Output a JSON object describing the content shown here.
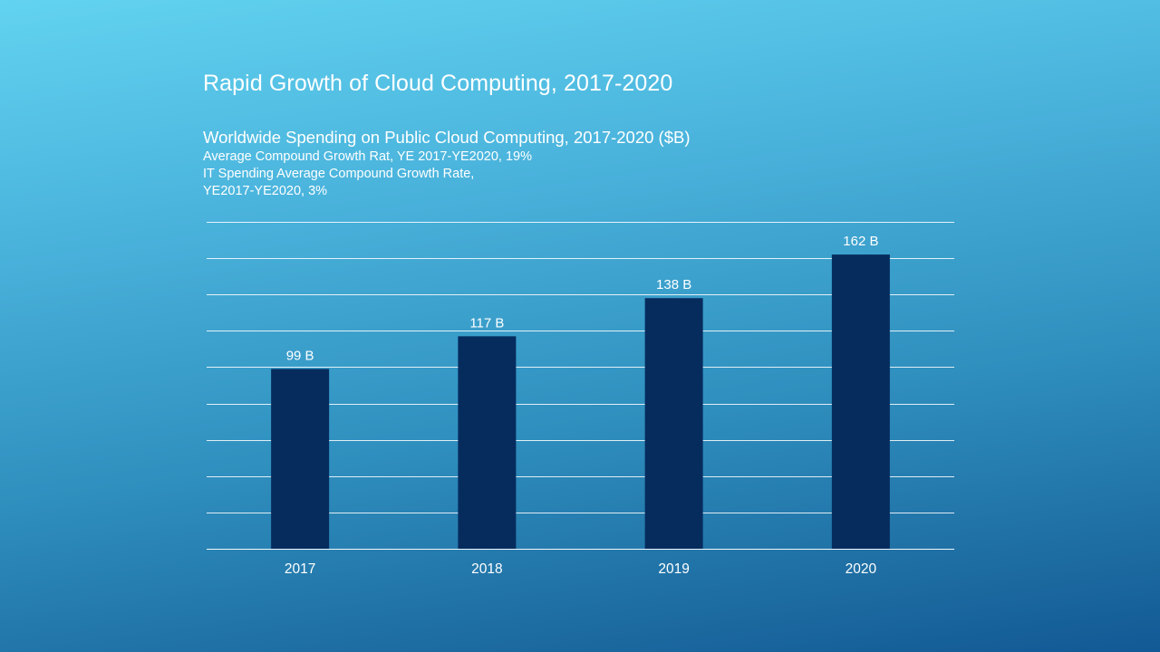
{
  "slide": {
    "title": "Rapid Growth of Cloud Computing, 2017-2020",
    "subtitle_lines": [
      "Worldwide Spending on Public Cloud Computing, 2017-2020 ($B)",
      "Average Compound Growth Rat, YE 2017-YE2020, 19%",
      "IT Spending Average Compound Growth Rate,",
      "YE2017-YE2020, 3%"
    ]
  },
  "colors": {
    "bar": "#062c5e",
    "gridline": "#ffffff",
    "text": "#ffffff"
  },
  "chart_data": {
    "type": "bar",
    "title": "",
    "xlabel": "",
    "ylabel": "",
    "categories": [
      "2017",
      "2018",
      "2019",
      "2020"
    ],
    "values": [
      99,
      117,
      138,
      162
    ],
    "data_labels": [
      "99 B",
      "117 B",
      "138 B",
      "162 B"
    ],
    "ylim": [
      0,
      180
    ],
    "grid": true,
    "legend": "none"
  }
}
